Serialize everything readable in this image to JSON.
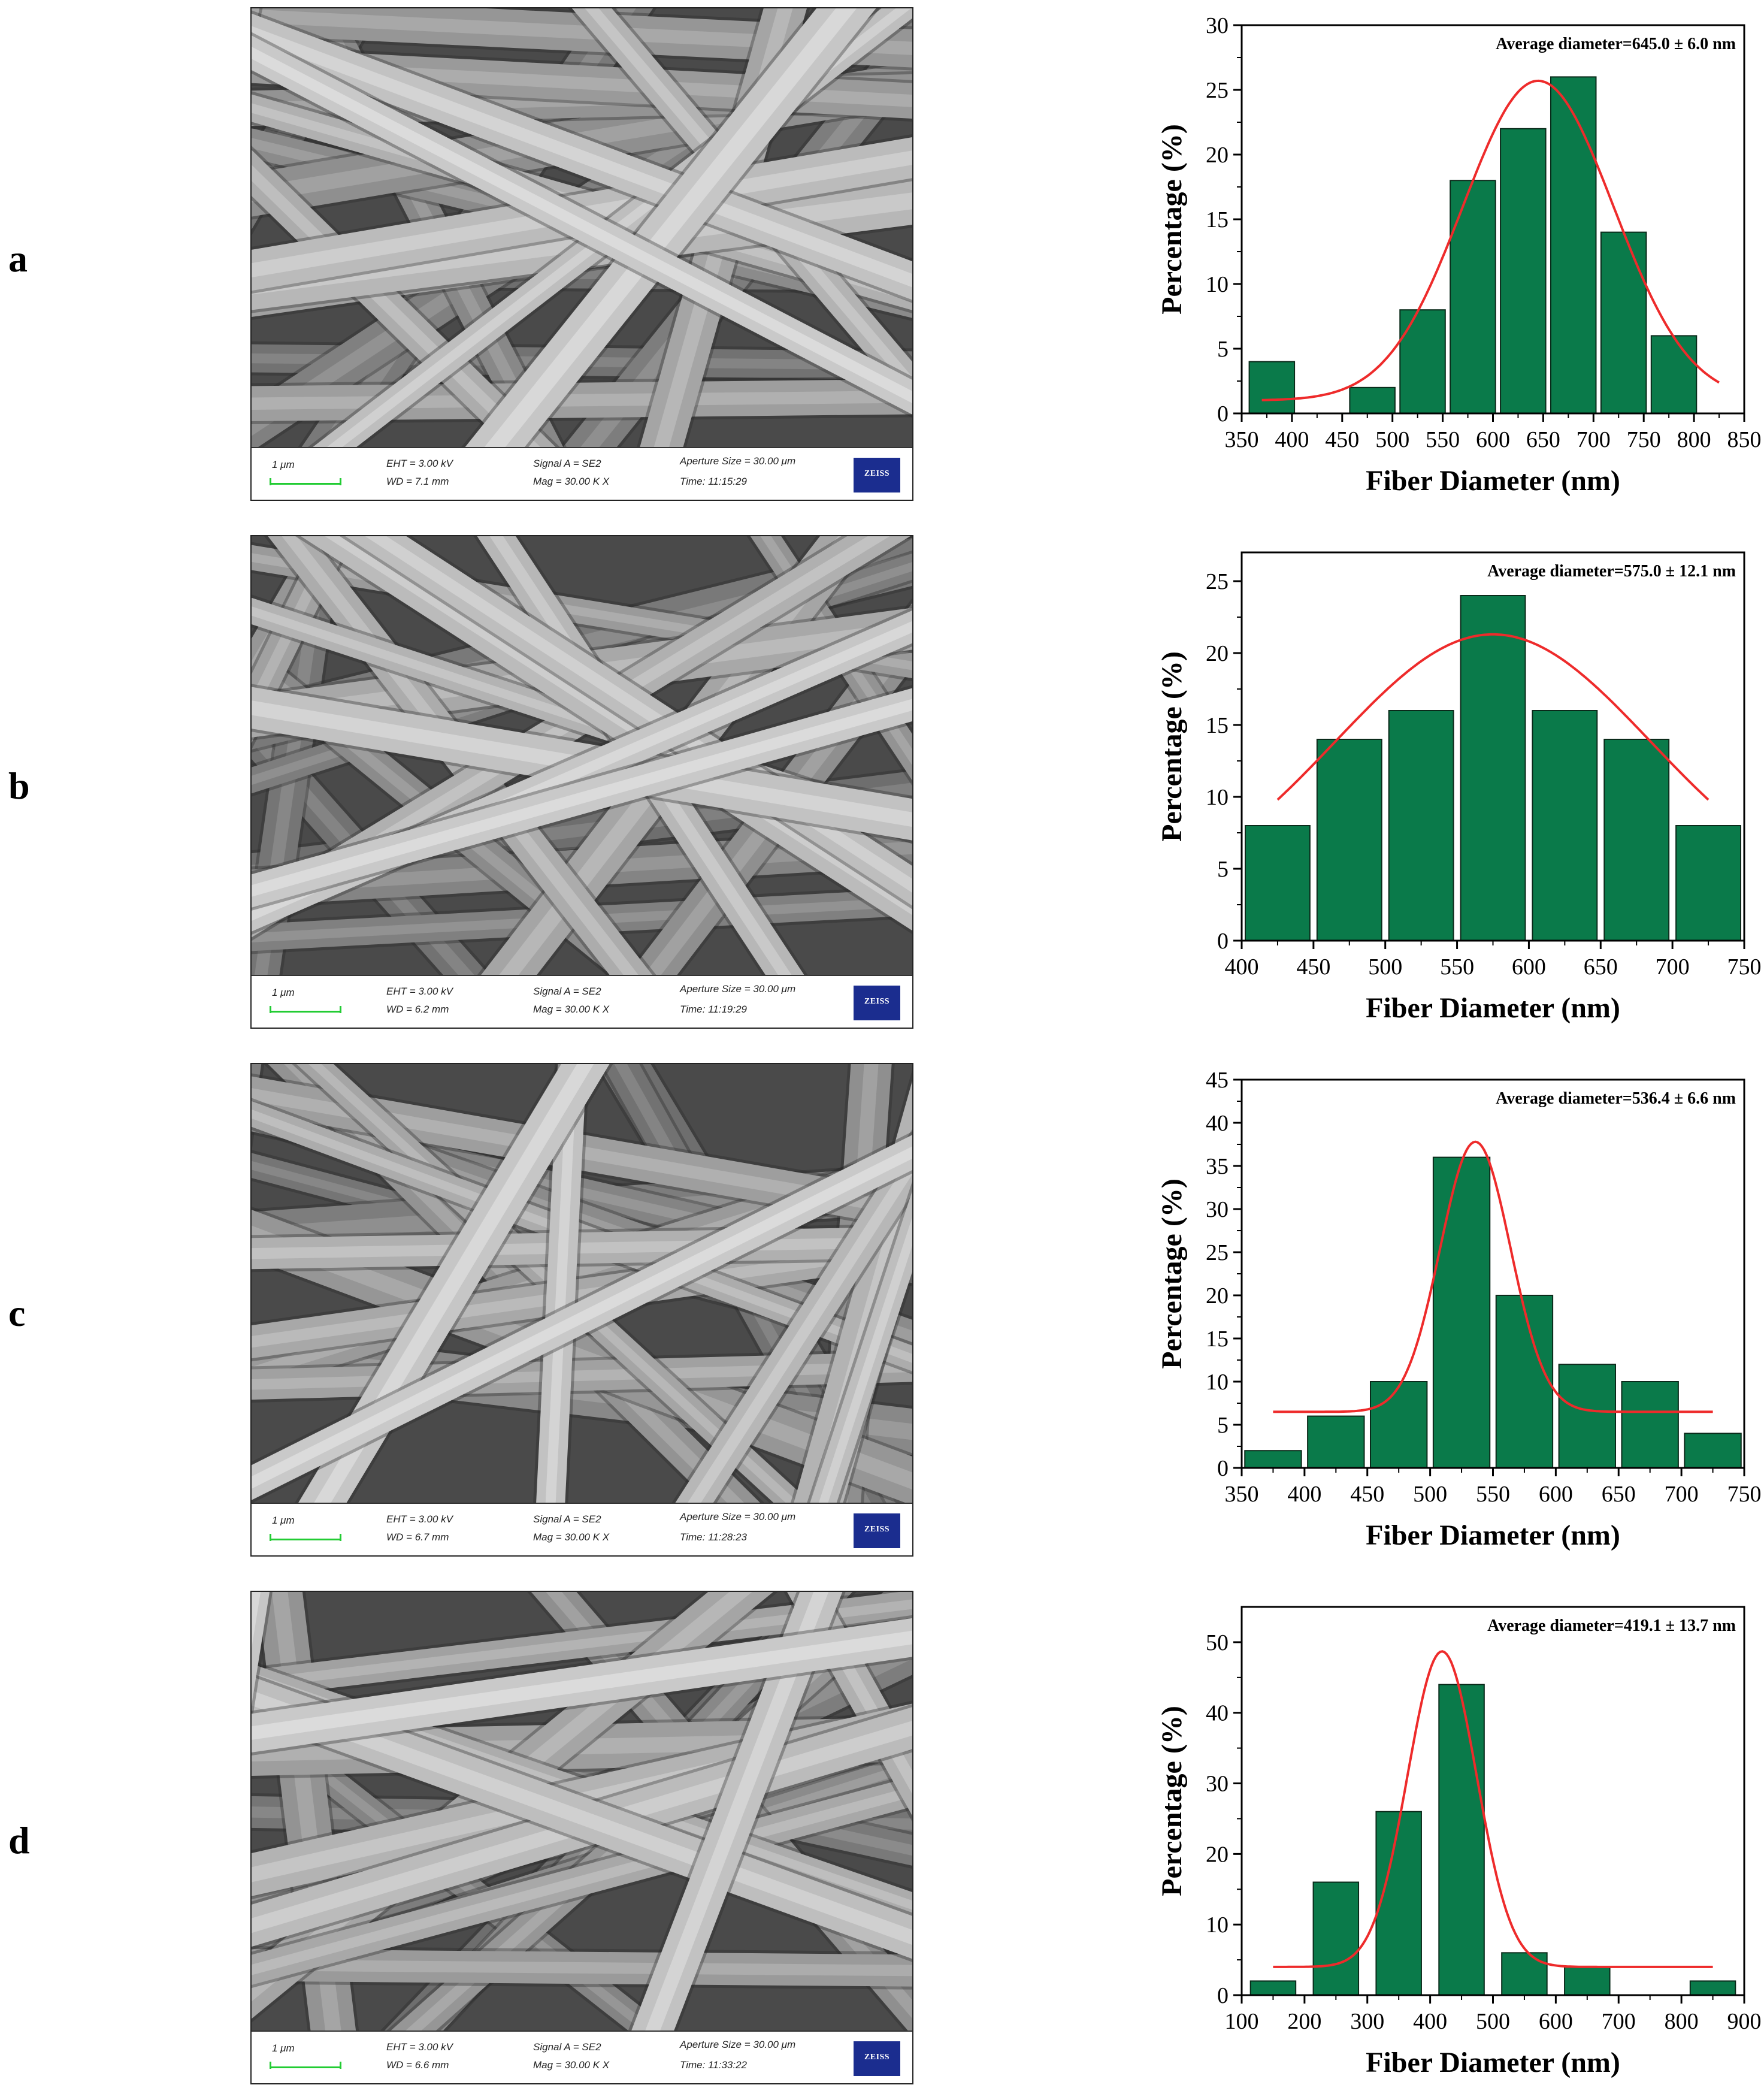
{
  "colors": {
    "bar": "#0a7a4a",
    "bar_edge": "#0a2a1a",
    "fit": "#ee2b2b"
  },
  "panels": [
    {
      "label": "a",
      "sem": {
        "scale": "1 μm",
        "eht": "EHT = 3.00 kV",
        "wd": "WD = 7.1 mm",
        "signal": "Signal A = SE2",
        "mag": "Mag = 30.00 K X",
        "aperture": "Aperture Size = 30.00 μm",
        "time": "Time: 11:15:29",
        "brand": "ZEISS"
      }
    },
    {
      "label": "b",
      "sem": {
        "scale": "1 μm",
        "eht": "EHT = 3.00 kV",
        "wd": "WD = 6.2 mm",
        "signal": "Signal A = SE2",
        "mag": "Mag = 30.00 K X",
        "aperture": "Aperture Size = 30.00 μm",
        "time": "Time: 11:19:29",
        "brand": "ZEISS"
      }
    },
    {
      "label": "c",
      "sem": {
        "scale": "1 μm",
        "eht": "EHT = 3.00 kV",
        "wd": "WD = 6.7 mm",
        "signal": "Signal A = SE2",
        "mag": "Mag = 30.00 K X",
        "aperture": "Aperture Size = 30.00 μm",
        "time": "Time: 11:28:23",
        "brand": "ZEISS"
      }
    },
    {
      "label": "d",
      "sem": {
        "scale": "1 μm",
        "eht": "EHT = 3.00 kV",
        "wd": "WD = 6.6 mm",
        "signal": "Signal A = SE2",
        "mag": "Mag = 30.00 K X",
        "aperture": "Aperture Size = 30.00 μm",
        "time": "Time: 11:33:22",
        "brand": "ZEISS"
      }
    }
  ],
  "chart_data": [
    {
      "type": "bar",
      "annotation": "Average diameter=645.0 ± 6.0 nm",
      "xlabel": "Fiber Diameter (nm)",
      "ylabel": "Percentage (%)",
      "xlim": [
        350,
        850
      ],
      "ylim": [
        0,
        30
      ],
      "xticks": [
        350,
        400,
        450,
        500,
        550,
        600,
        650,
        700,
        750,
        800,
        850
      ],
      "yticks": [
        0,
        5,
        10,
        15,
        20,
        25,
        30
      ],
      "bin_width": 50,
      "bins": [
        {
          "center": 380,
          "value": 4
        },
        {
          "center": 480,
          "value": 2
        },
        {
          "center": 530,
          "value": 8
        },
        {
          "center": 580,
          "value": 18
        },
        {
          "center": 630,
          "value": 22
        },
        {
          "center": 680,
          "value": 26
        },
        {
          "center": 730,
          "value": 14
        },
        {
          "center": 780,
          "value": 6
        }
      ],
      "fit": {
        "type": "gaussian",
        "mean": 645,
        "sigma": 75,
        "amplitude": 24.7,
        "baseline": 1.0,
        "x_range": [
          370,
          825
        ]
      }
    },
    {
      "type": "bar",
      "annotation": "Average diameter=575.0 ± 12.1 nm",
      "xlabel": "Fiber Diameter (nm)",
      "ylabel": "Percentage (%)",
      "xlim": [
        400,
        750
      ],
      "ylim": [
        0,
        27
      ],
      "xticks": [
        400,
        450,
        500,
        550,
        600,
        650,
        700,
        750
      ],
      "yticks": [
        0,
        5,
        10,
        15,
        20,
        25
      ],
      "bin_width": 50,
      "bins": [
        {
          "center": 425,
          "value": 8
        },
        {
          "center": 475,
          "value": 14
        },
        {
          "center": 525,
          "value": 16
        },
        {
          "center": 575,
          "value": 24
        },
        {
          "center": 625,
          "value": 16
        },
        {
          "center": 675,
          "value": 14
        },
        {
          "center": 725,
          "value": 8
        }
      ],
      "fit": {
        "type": "gaussian",
        "mean": 575,
        "sigma": 110,
        "amplitude": 19.0,
        "baseline": 2.3,
        "x_range": [
          425,
          725
        ]
      }
    },
    {
      "type": "bar",
      "annotation": "Average diameter=536.4 ± 6.6 nm",
      "xlabel": "Fiber Diameter (nm)",
      "ylabel": "Percentage (%)",
      "xlim": [
        350,
        750
      ],
      "ylim": [
        0,
        45
      ],
      "xticks": [
        350,
        400,
        450,
        500,
        550,
        600,
        650,
        700,
        750
      ],
      "yticks": [
        0,
        5,
        10,
        15,
        20,
        25,
        30,
        35,
        40,
        45
      ],
      "bin_width": 50,
      "bins": [
        {
          "center": 375,
          "value": 2
        },
        {
          "center": 425,
          "value": 6
        },
        {
          "center": 475,
          "value": 10
        },
        {
          "center": 525,
          "value": 36
        },
        {
          "center": 575,
          "value": 20
        },
        {
          "center": 625,
          "value": 12
        },
        {
          "center": 675,
          "value": 10
        },
        {
          "center": 725,
          "value": 4
        }
      ],
      "fit": {
        "type": "gaussian",
        "mean": 536,
        "sigma": 28,
        "amplitude": 31.3,
        "baseline": 6.5,
        "x_range": [
          375,
          725
        ]
      }
    },
    {
      "type": "bar",
      "annotation": "Average diameter=419.1 ± 13.7 nm",
      "xlabel": "Fiber Diameter (nm)",
      "ylabel": "Percentage (%)",
      "xlim": [
        100,
        900
      ],
      "ylim": [
        0,
        55
      ],
      "xticks": [
        100,
        200,
        300,
        400,
        500,
        600,
        700,
        800,
        900
      ],
      "yticks": [
        0,
        10,
        20,
        30,
        40,
        50
      ],
      "bin_width": 80,
      "bins": [
        {
          "center": 150,
          "value": 2
        },
        {
          "center": 250,
          "value": 16
        },
        {
          "center": 350,
          "value": 26
        },
        {
          "center": 450,
          "value": 44
        },
        {
          "center": 550,
          "value": 6
        },
        {
          "center": 650,
          "value": 4
        },
        {
          "center": 850,
          "value": 2
        }
      ],
      "fit": {
        "type": "gaussian",
        "mean": 419,
        "sigma": 55,
        "amplitude": 44.7,
        "baseline": 4.0,
        "x_range": [
          150,
          850
        ]
      }
    }
  ]
}
